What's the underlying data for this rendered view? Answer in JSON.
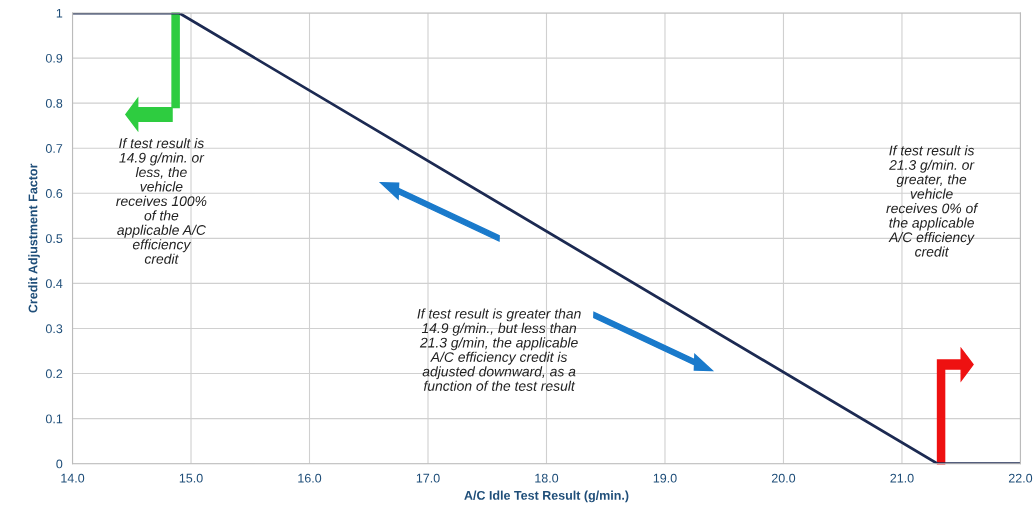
{
  "chart_data": {
    "type": "line",
    "xlabel": "A/C Idle Test Result (g/min.)",
    "ylabel": "Credit Adjustment Factor",
    "x": [
      14.0,
      14.9,
      21.3,
      22.0
    ],
    "series": [
      {
        "color": "#1c2a52",
        "values": [
          1,
          1,
          0,
          0
        ]
      }
    ],
    "xlim": [
      14.0,
      22.0
    ],
    "ylim": [
      0,
      1
    ],
    "xticks": [
      {
        "value": 14,
        "label": "14.0"
      },
      {
        "value": 15,
        "label": "15.0"
      },
      {
        "value": 16,
        "label": "16.0"
      },
      {
        "value": 17,
        "label": "17.0"
      },
      {
        "value": 18,
        "label": "18.0"
      },
      {
        "value": 19,
        "label": "19.0"
      },
      {
        "value": 20,
        "label": "20.0"
      },
      {
        "value": 21,
        "label": "21.0"
      },
      {
        "value": 22,
        "label": "22.0"
      }
    ],
    "yticks": [
      0,
      0.1,
      0.2,
      0.3,
      0.4,
      0.5,
      0.6,
      0.7,
      0.8,
      0.9,
      1
    ],
    "grid": true,
    "marker": "none",
    "line_style": "solid",
    "legend": false,
    "annotations": [
      "If test result is\n14.9 g/min. or\nless, the\nvehicle\nreceives 100%\nof the\napplicable A/C\nefficiency\ncredit",
      "If test result is greater than\n14.9 g/min., but less than\n21.3 g/min, the applicable\nA/C efficiency credit is\nadjusted downward, as a\nfunction of the test result",
      "If test result is\n21.3 g/min. or\ngreater, the\nvehicle\nreceives 0% of\nthe applicable\nA/C efficiency\ncredit"
    ]
  }
}
